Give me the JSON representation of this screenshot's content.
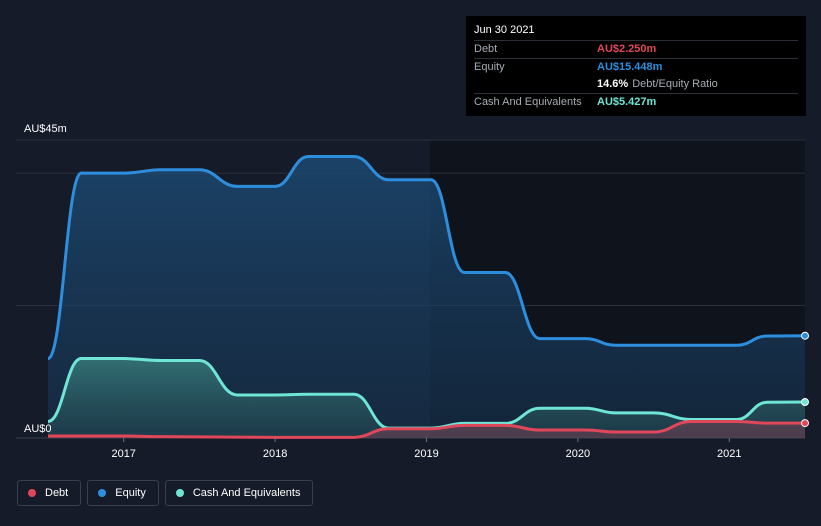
{
  "chart_data": {
    "type": "area",
    "x_start_year": 2016.5,
    "x_end_year": 2021.5,
    "xticks": [
      "2017",
      "2018",
      "2019",
      "2020",
      "2021"
    ],
    "ylim": [
      0,
      45
    ],
    "y_top_label": "AU$45m",
    "y_bottom_label": "AU$0",
    "series": [
      {
        "name": "Equity",
        "color": "#2e8ede",
        "points": [
          [
            2016.5,
            12
          ],
          [
            2016.72,
            40
          ],
          [
            2017.0,
            40
          ],
          [
            2017.25,
            40.5
          ],
          [
            2017.5,
            40.5
          ],
          [
            2017.75,
            38
          ],
          [
            2018.0,
            38
          ],
          [
            2018.22,
            42.5
          ],
          [
            2018.52,
            42.5
          ],
          [
            2018.75,
            39
          ],
          [
            2019.03,
            39
          ],
          [
            2019.25,
            25
          ],
          [
            2019.52,
            25
          ],
          [
            2019.75,
            15
          ],
          [
            2020.05,
            15
          ],
          [
            2020.25,
            14
          ],
          [
            2020.5,
            14
          ],
          [
            2020.75,
            14
          ],
          [
            2021.05,
            14
          ],
          [
            2021.25,
            15.4
          ],
          [
            2021.5,
            15.448
          ]
        ]
      },
      {
        "name": "Cash And Equivalents",
        "color": "#6fe5d6",
        "points": [
          [
            2016.5,
            2.5
          ],
          [
            2016.72,
            12
          ],
          [
            2017.0,
            12
          ],
          [
            2017.25,
            11.7
          ],
          [
            2017.5,
            11.7
          ],
          [
            2017.75,
            6.5
          ],
          [
            2018.0,
            6.5
          ],
          [
            2018.22,
            6.6
          ],
          [
            2018.52,
            6.6
          ],
          [
            2018.75,
            1.5
          ],
          [
            2019.03,
            1.5
          ],
          [
            2019.25,
            2.2
          ],
          [
            2019.52,
            2.2
          ],
          [
            2019.75,
            4.5
          ],
          [
            2020.05,
            4.5
          ],
          [
            2020.25,
            3.8
          ],
          [
            2020.5,
            3.8
          ],
          [
            2020.75,
            2.8
          ],
          [
            2021.05,
            2.8
          ],
          [
            2021.25,
            5.4
          ],
          [
            2021.5,
            5.427
          ]
        ]
      },
      {
        "name": "Debt",
        "color": "#e0475a",
        "points": [
          [
            2016.5,
            0.3
          ],
          [
            2017.0,
            0.3
          ],
          [
            2017.25,
            0.2
          ],
          [
            2018.0,
            0.1
          ],
          [
            2018.52,
            0.1
          ],
          [
            2018.75,
            1.4
          ],
          [
            2019.03,
            1.4
          ],
          [
            2019.25,
            1.9
          ],
          [
            2019.52,
            1.9
          ],
          [
            2019.75,
            1.2
          ],
          [
            2020.05,
            1.2
          ],
          [
            2020.25,
            0.9
          ],
          [
            2020.5,
            0.9
          ],
          [
            2020.75,
            2.5
          ],
          [
            2021.05,
            2.5
          ],
          [
            2021.25,
            2.25
          ],
          [
            2021.5,
            2.25
          ]
        ]
      }
    ],
    "legend": [
      {
        "name": "Debt",
        "color": "#e0475a"
      },
      {
        "name": "Equity",
        "color": "#2e8ede"
      },
      {
        "name": "Cash And Equivalents",
        "color": "#6fe5d6"
      }
    ],
    "legend_placement": "bottom-left",
    "grid": true
  },
  "tooltip": {
    "date": "Jun 30 2021",
    "debt_label": "Debt",
    "debt_value": "AU$2.250m",
    "debt_color": "#e0475a",
    "equity_label": "Equity",
    "equity_value": "AU$15.448m",
    "equity_color": "#2e8ede",
    "ratio_value": "14.6%",
    "ratio_label": "Debt/Equity Ratio",
    "cash_label": "Cash And Equivalents",
    "cash_value": "AU$5.427m",
    "cash_color": "#6fe5d6"
  }
}
